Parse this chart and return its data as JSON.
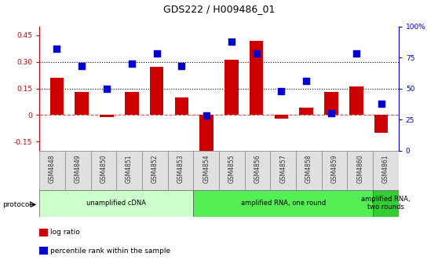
{
  "title": "GDS222 / H009486_01",
  "samples": [
    "GSM4848",
    "GSM4849",
    "GSM4850",
    "GSM4851",
    "GSM4852",
    "GSM4853",
    "GSM4854",
    "GSM4855",
    "GSM4856",
    "GSM4857",
    "GSM4858",
    "GSM4859",
    "GSM4860",
    "GSM4861"
  ],
  "log_ratio": [
    0.21,
    0.13,
    -0.01,
    0.13,
    0.27,
    0.1,
    -0.2,
    0.31,
    0.42,
    -0.02,
    0.04,
    0.13,
    0.16,
    -0.1
  ],
  "percentile_rank": [
    0.82,
    0.68,
    0.5,
    0.7,
    0.78,
    0.68,
    0.28,
    0.88,
    0.78,
    0.48,
    0.56,
    0.3,
    0.78,
    0.38
  ],
  "bar_color": "#cc0000",
  "dot_color": "#0000cc",
  "ylim_left": [
    -0.2,
    0.5
  ],
  "ylim_right": [
    0,
    1.0
  ],
  "yticks_left": [
    -0.15,
    0.0,
    0.15,
    0.3,
    0.45
  ],
  "ytick_labels_left": [
    "-0.15",
    "0",
    "0.15",
    "0.30",
    "0.45"
  ],
  "yticks_right": [
    0.0,
    0.25,
    0.5,
    0.75,
    1.0
  ],
  "ytick_labels_right": [
    "0",
    "25",
    "50",
    "75",
    "100%"
  ],
  "hlines": [
    0.15,
    0.3
  ],
  "protocols": [
    {
      "label": "unamplified cDNA",
      "start": 0,
      "end": 6,
      "color": "#ccffcc"
    },
    {
      "label": "amplified RNA, one round",
      "start": 6,
      "end": 13,
      "color": "#55ee55"
    },
    {
      "label": "amplified RNA,\ntwo rounds",
      "start": 13,
      "end": 14,
      "color": "#33cc33"
    }
  ],
  "legend_items": [
    {
      "label": "log ratio",
      "color": "#cc0000"
    },
    {
      "label": "percentile rank within the sample",
      "color": "#0000cc"
    }
  ],
  "protocol_label": "protocol",
  "background_color": "#ffffff",
  "bar_width": 0.55,
  "dot_size": 28
}
